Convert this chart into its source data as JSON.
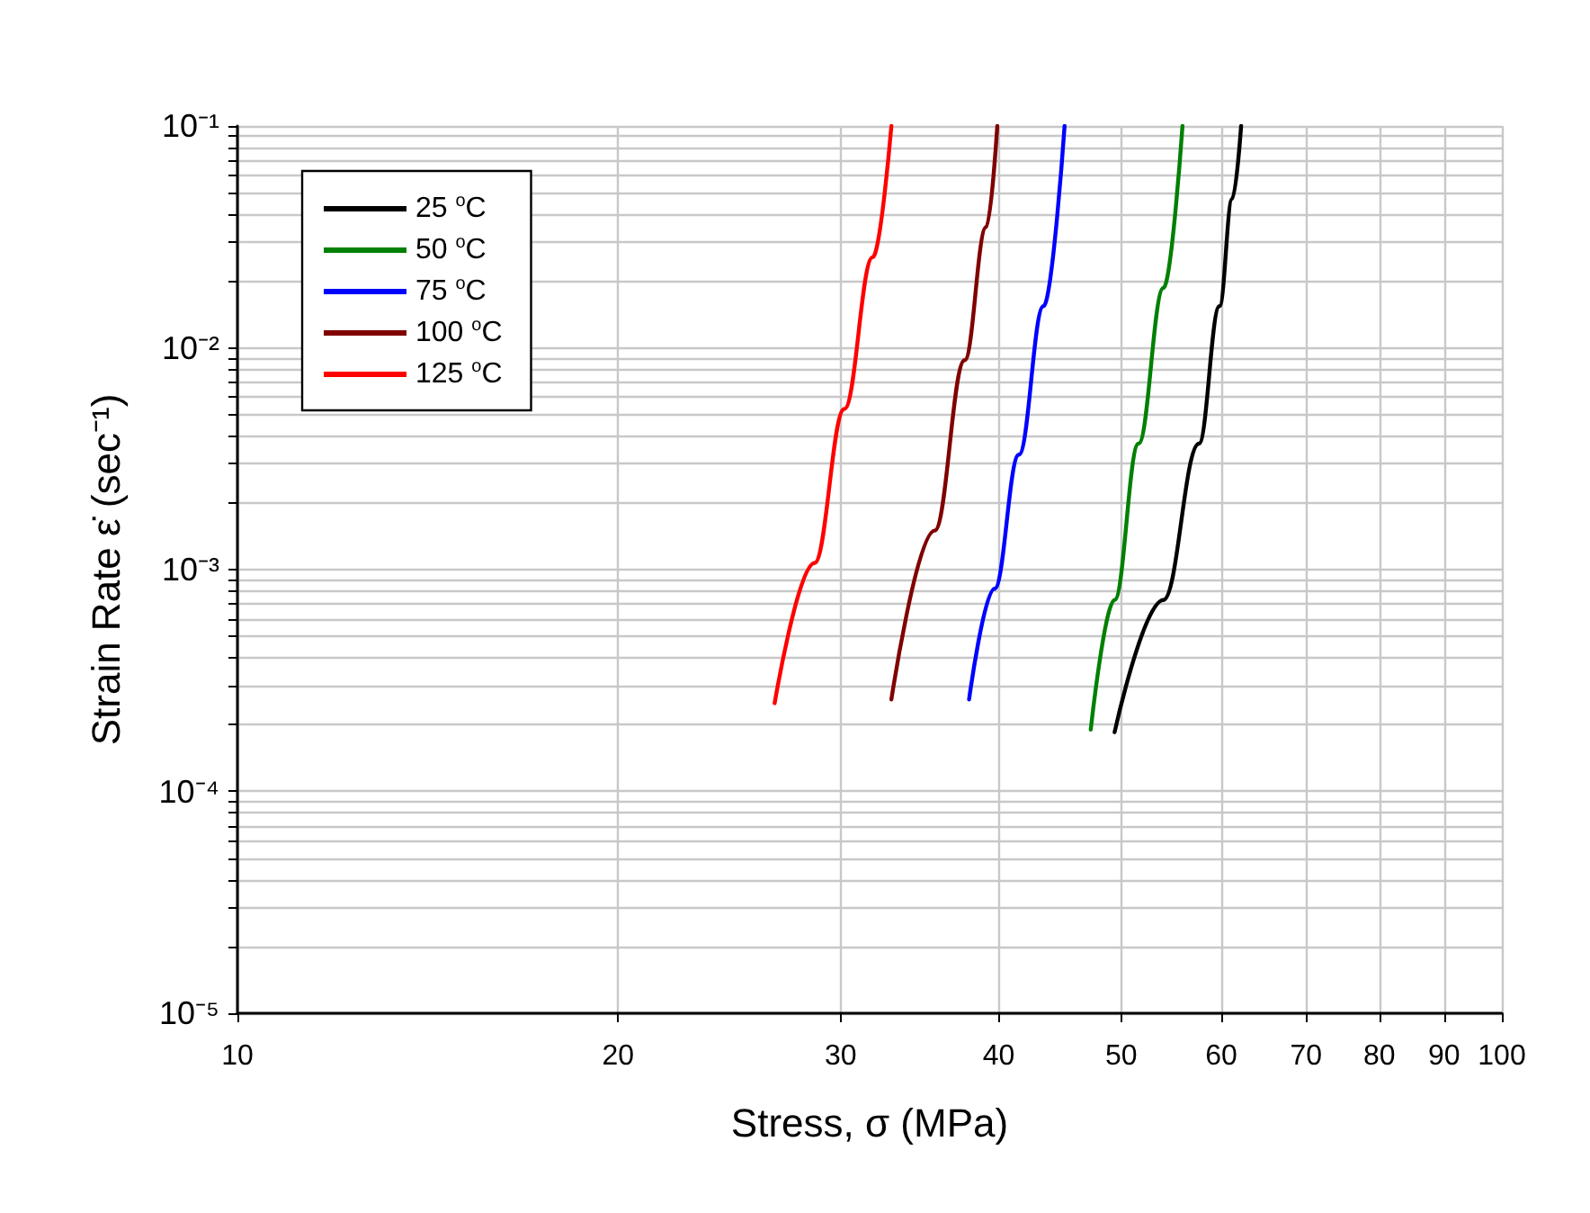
{
  "chart_data": {
    "type": "line",
    "xlabel": "Stress, σ (MPa)",
    "ylabel": "Strain Rate ε̇ (sec⁻¹)",
    "log": "xy",
    "grid": true,
    "legend": "top left",
    "xlim": [
      10,
      100
    ],
    "xticks": [
      10,
      20,
      30,
      40,
      50,
      60,
      70,
      80,
      90,
      100
    ],
    "ylim": [
      1e-05,
      0.1
    ],
    "yticks": [
      {
        "value": 1e-05,
        "label": "10⁻⁵"
      },
      {
        "value": 2e-05,
        "label": null
      },
      {
        "value": 3e-05,
        "label": null
      },
      {
        "value": 4e-05,
        "label": null
      },
      {
        "value": 5e-05,
        "label": null
      },
      {
        "value": 6e-05,
        "label": null
      },
      {
        "value": 7e-05,
        "label": null
      },
      {
        "value": 8e-05,
        "label": null
      },
      {
        "value": 9e-05,
        "label": null
      },
      {
        "value": 0.0001,
        "label": "10⁻⁴"
      },
      {
        "value": 0.0002,
        "label": null
      },
      {
        "value": 0.0003,
        "label": null
      },
      {
        "value": 0.0004,
        "label": null
      },
      {
        "value": 0.0005,
        "label": null
      },
      {
        "value": 0.0006,
        "label": null
      },
      {
        "value": 0.0007,
        "label": null
      },
      {
        "value": 0.0008,
        "label": null
      },
      {
        "value": 0.0009,
        "label": null
      },
      {
        "value": 0.001,
        "label": "10⁻³"
      },
      {
        "value": 0.002,
        "label": null
      },
      {
        "value": 0.003,
        "label": null
      },
      {
        "value": 0.004,
        "label": null
      },
      {
        "value": 0.005,
        "label": null
      },
      {
        "value": 0.006,
        "label": null
      },
      {
        "value": 0.007,
        "label": null
      },
      {
        "value": 0.008,
        "label": null
      },
      {
        "value": 0.009,
        "label": null
      },
      {
        "value": 0.01,
        "label": "10⁻²"
      },
      {
        "value": 0.02,
        "label": null
      },
      {
        "value": 0.03,
        "label": null
      },
      {
        "value": 0.04,
        "label": null
      },
      {
        "value": 0.05,
        "label": null
      },
      {
        "value": 0.06,
        "label": null
      },
      {
        "value": 0.07,
        "label": null
      },
      {
        "value": 0.08,
        "label": null
      },
      {
        "value": 0.09,
        "label": null
      },
      {
        "value": 0.1,
        "label": "10⁻¹"
      }
    ],
    "series": [
      {
        "name": "25 $^{o}$C",
        "color": "#000000",
        "x": [
          49.4,
          54.0,
          57.6,
          59.8,
          61.2,
          62.2
        ],
        "values": [
          0.000185,
          0.00073,
          0.0037,
          0.0154,
          0.047,
          0.1
        ]
      },
      {
        "name": "50 $^{o}$C",
        "color": "#008000",
        "x": [
          47.3,
          49.4,
          51.6,
          54.0,
          55.9
        ],
        "values": [
          0.00019,
          0.00073,
          0.0037,
          0.0186,
          0.1
        ]
      },
      {
        "name": "75 $^{o}$C",
        "color": "#0000ff",
        "x": [
          37.9,
          39.7,
          41.5,
          43.4,
          45.1
        ],
        "values": [
          0.00026,
          0.00082,
          0.0033,
          0.0154,
          0.1
        ]
      },
      {
        "name": "100 $^{o}$C",
        "color": "#800000",
        "x": [
          32.9,
          35.6,
          37.6,
          39.1,
          39.9
        ],
        "values": [
          0.00026,
          0.0015,
          0.0088,
          0.035,
          0.1
        ]
      },
      {
        "name": "125 $^{o}$C",
        "color": "#ff0000",
        "x": [
          26.6,
          28.6,
          30.2,
          31.8,
          32.9
        ],
        "values": [
          0.00025,
          0.00107,
          0.0053,
          0.0256,
          0.1
        ]
      }
    ]
  }
}
